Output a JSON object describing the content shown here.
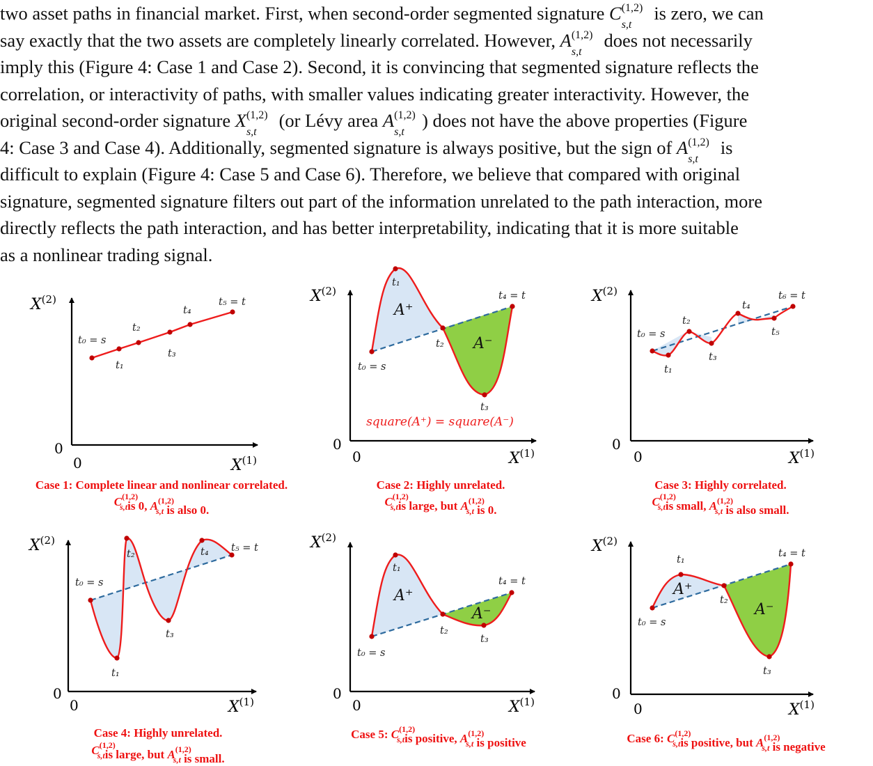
{
  "paragraph": {
    "lines": [
      [
        "two asset paths in financial market. First, when second-order segmented signature ",
        {
          "sym": "C",
          "su": "(1,2)",
          "sb": "s,t"
        },
        " is zero, we can"
      ],
      [
        "say exactly that the two assets are completely linearly correlated. However, ",
        {
          "sym": "A",
          "su": "(1,2)",
          "sb": "s,t"
        },
        " does not necessarily"
      ],
      [
        "imply this (Figure 4: Case 1 and Case 2). Second, it is convincing that segmented signature reflects the"
      ],
      [
        "correlation, or interactivity of paths, with smaller values indicating greater interactivity. However, the"
      ],
      [
        "original second-order signature ",
        {
          "sym": "X",
          "su": "(1,2)",
          "sb": "s,t"
        },
        " (or Lévy area ",
        {
          "sym": "A",
          "su": "(1,2)",
          "sb": "s,t"
        },
        ") does not have the above properties (Figure"
      ],
      [
        "4: Case 3 and Case 4). Additionally, segmented signature is always positive, but the sign of ",
        {
          "sym": "A",
          "su": "(1,2)",
          "sb": "s,t"
        },
        " is"
      ],
      [
        "difficult to explain (Figure 4: Case 5 and Case 6). Therefore, we believe that compared with original"
      ],
      [
        "signature, segmented signature filters out part of the information unrelated to the path interaction, more"
      ],
      [
        "directly reflects the path interaction, and has better interpretability, indicating that it is more suitable"
      ],
      [
        "as a nonlinear trading signal."
      ]
    ]
  },
  "axes": {
    "y_label": "X",
    "y_sup": "(2)",
    "x_label": "X",
    "x_sup": "(1)",
    "zero": "0"
  },
  "colors": {
    "path": "#ee1c1c",
    "chord": "#2e6b9e",
    "pos_fill": "#d8e6f5",
    "neg_fill": "#8fcf45",
    "caption": "#ee1111"
  },
  "area_labels": {
    "plus": "A⁺",
    "minus": "A⁻"
  },
  "panels": [
    {
      "id": "case1",
      "caption_line1": "Case 1: Complete linear and nonlinear correlated.",
      "caption_line2": [
        {
          "sym": "C",
          "su": "(1,2)",
          "sb": "s,t"
        },
        "is 0, ",
        {
          "sym": "A",
          "su": "(1,2)",
          "sb": "s,t"
        },
        " is also 0."
      ],
      "point_labels": [
        "t₀ = s",
        "t₁",
        "t₂",
        "t₃",
        "t₄",
        "t₅ = t"
      ]
    },
    {
      "id": "case2",
      "caption_line1": "Case 2: Highly unrelated.",
      "caption_line2": [
        {
          "sym": "C",
          "su": "(1,2)",
          "sb": "s,t"
        },
        "is large, but ",
        {
          "sym": "A",
          "su": "(1,2)",
          "sb": "s,t"
        },
        " is 0."
      ],
      "point_labels": [
        "t₀ = s",
        "t₁",
        "t₂",
        "t₃",
        "t₄ = t"
      ],
      "note": "square(A⁺) = square(A⁻)"
    },
    {
      "id": "case3",
      "caption_line1": "Case 3: Highly correlated.",
      "caption_line2": [
        {
          "sym": "C",
          "su": "(1,2)",
          "sb": "s,t"
        },
        "is small, ",
        {
          "sym": "A",
          "su": "(1,2)",
          "sb": "s,t"
        },
        " is also small."
      ],
      "point_labels": [
        "t₀ = s",
        "t₁",
        "t₂",
        "t₃",
        "t₄",
        "t₅",
        "t₆ = t"
      ]
    },
    {
      "id": "case4",
      "caption_line1": "Case 4: Highly unrelated.",
      "caption_line2": [
        {
          "sym": "C",
          "su": "(1,2)",
          "sb": "s,t"
        },
        "is large, but ",
        {
          "sym": "A",
          "su": "(1,2)",
          "sb": "s,t"
        },
        " is small."
      ],
      "point_labels": [
        "t₀ = s",
        "t₁",
        "t₂",
        "t₃",
        "t₄",
        "t₅ = t"
      ]
    },
    {
      "id": "case5",
      "caption_line1": "",
      "caption_line2": [
        "Case 5: ",
        {
          "sym": "C",
          "su": "(1,2)",
          "sb": "s,t"
        },
        "is positive, ",
        {
          "sym": "A",
          "su": "(1,2)",
          "sb": "s,t"
        },
        " is positive"
      ],
      "point_labels": [
        "t₀ = s",
        "t₁",
        "t₂",
        "t₃",
        "t₄ = t"
      ]
    },
    {
      "id": "case6",
      "caption_line1": "",
      "caption_line2": [
        "Case 6: ",
        {
          "sym": "C",
          "su": "(1,2)",
          "sb": "s,t"
        },
        "is positive, but ",
        {
          "sym": "A",
          "su": "(1,2)",
          "sb": "s,t"
        },
        " is negative"
      ],
      "point_labels": [
        "t₀ = s",
        "t₁",
        "t₂",
        "t₃",
        "t₄ = t"
      ]
    }
  ]
}
